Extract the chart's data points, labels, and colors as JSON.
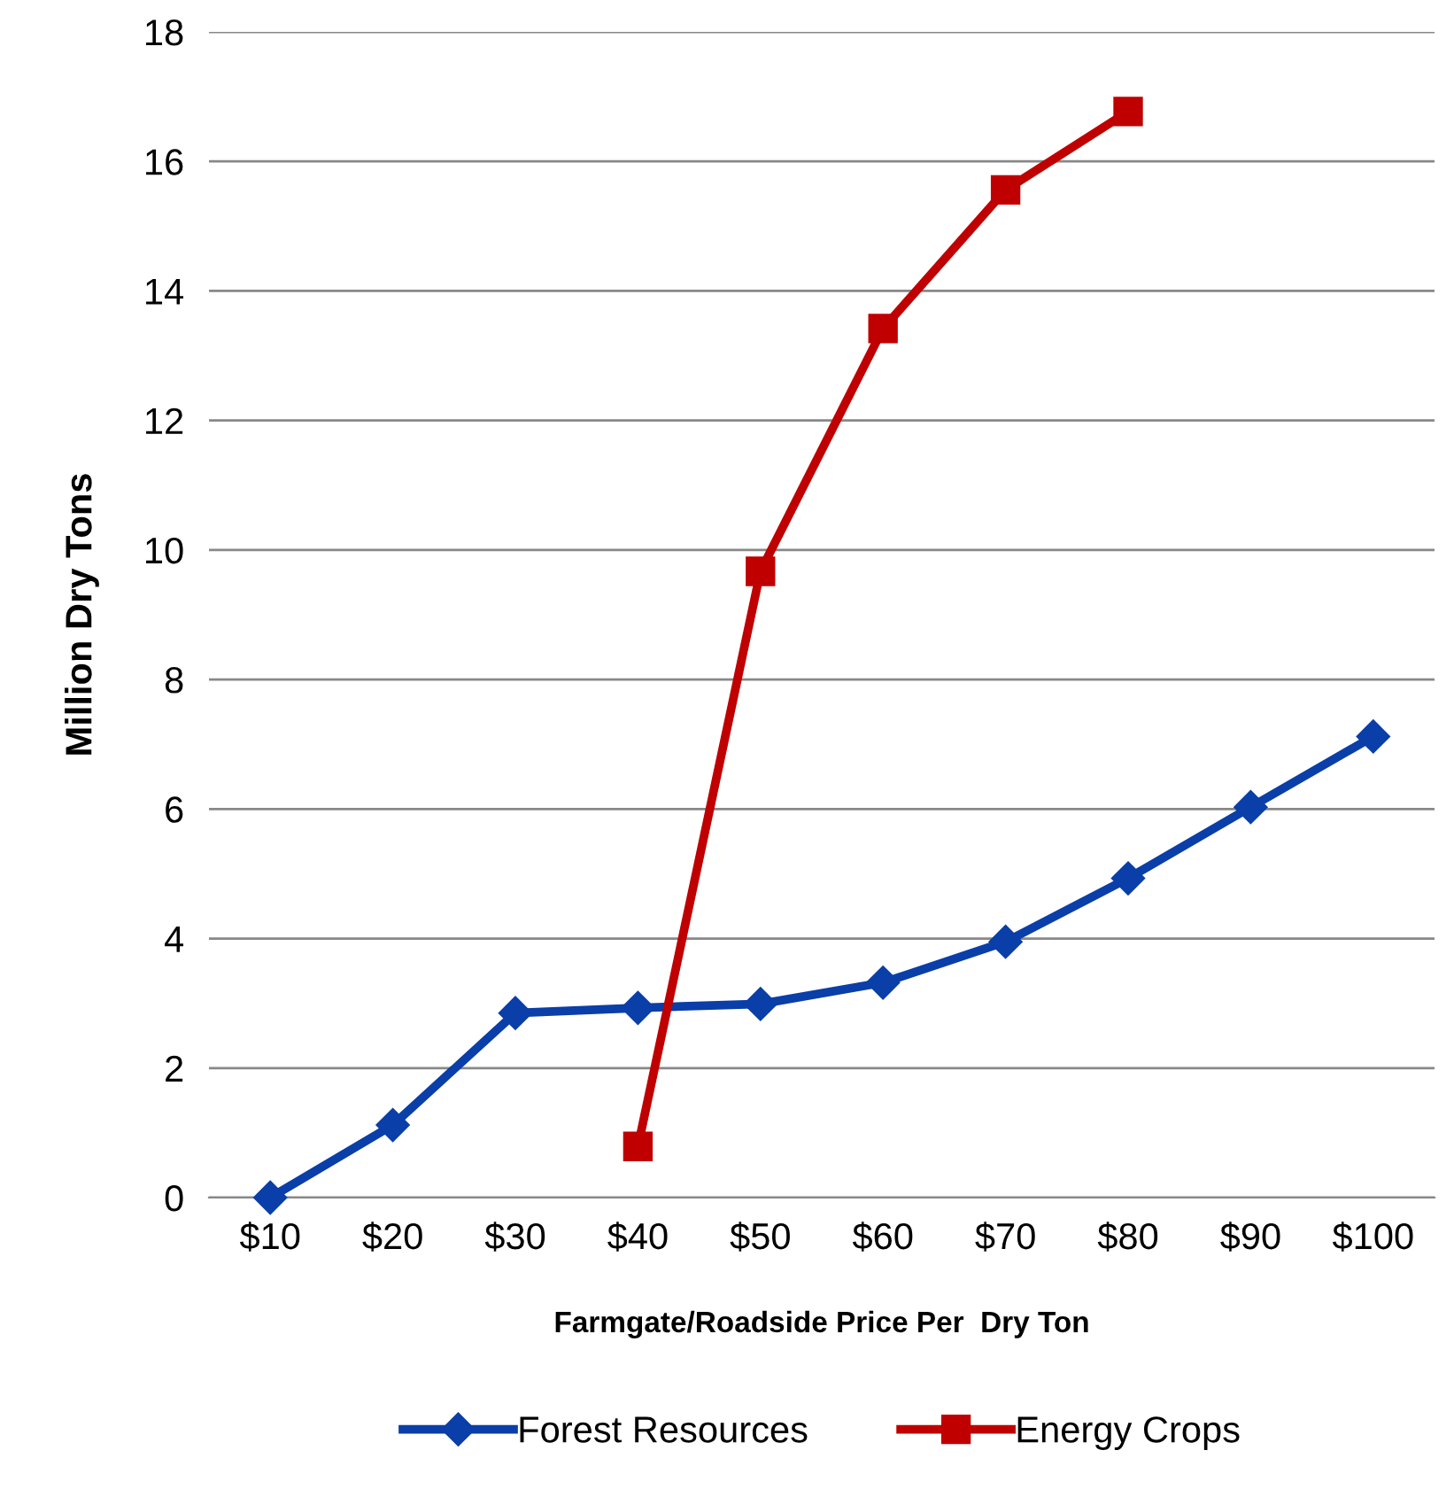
{
  "chart_data": {
    "type": "line",
    "xlabel": "Farmgate/Roadside Price Per  Dry Ton",
    "ylabel": "Million Dry Tons",
    "categories": [
      "$10",
      "$20",
      "$30",
      "$40",
      "$50",
      "$60",
      "$70",
      "$80",
      "$90",
      "$100"
    ],
    "series": [
      {
        "name": "Forest Resources",
        "color": "#0a3ea8",
        "marker": "diamond",
        "values": [
          0,
          1.12,
          2.85,
          2.93,
          2.99,
          3.32,
          3.95,
          4.93,
          6.03,
          7.12
        ]
      },
      {
        "name": "Energy Crops",
        "color": "#c00000",
        "marker": "square",
        "values": [
          null,
          null,
          null,
          0.79,
          9.67,
          13.42,
          15.56,
          16.77,
          null,
          null
        ]
      }
    ],
    "ylim": [
      0,
      18
    ],
    "yticks": [
      0,
      2,
      4,
      6,
      8,
      10,
      12,
      14,
      16,
      18
    ],
    "grid": "y",
    "legend": "bottom",
    "line_style": "solid"
  }
}
